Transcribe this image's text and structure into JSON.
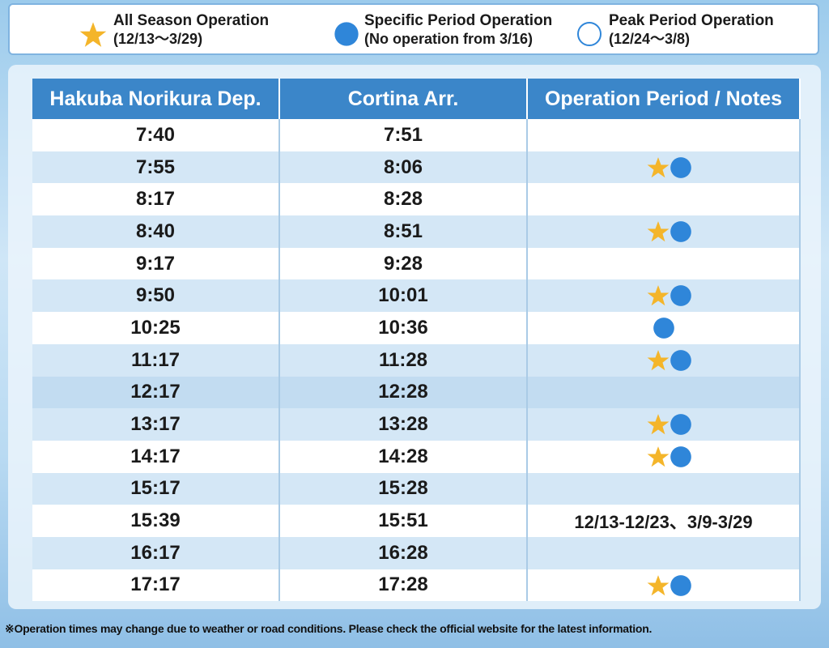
{
  "legend": [
    {
      "title": "All Season Operation",
      "period": "(12/13〜3/29)"
    },
    {
      "title": "Specific Period Operation",
      "period": "(No operation from 3/16)"
    },
    {
      "title": "Peak Period Operation",
      "period": "(12/24〜3/8)"
    }
  ],
  "table": {
    "headers": [
      "Hakuba Norikura Dep.",
      "Cortina Arr.",
      "Operation Period / Notes"
    ],
    "rows": [
      [
        "7:40",
        "7:51"
      ],
      [
        "7:55",
        "8:06"
      ],
      [
        "8:17",
        "8:28"
      ],
      [
        "8:40",
        "8:51"
      ],
      [
        "9:17",
        "9:28"
      ],
      [
        "9:50",
        "10:01"
      ],
      [
        "10:25",
        "10:36"
      ],
      [
        "11:17",
        "11:28"
      ],
      [
        "12:17",
        "12:28"
      ],
      [
        "13:17",
        "13:28"
      ],
      [
        "14:17",
        "14:28"
      ],
      [
        "15:17",
        "15:28"
      ],
      [
        "15:39",
        "15:51",
        "12/13-12/23、3/9-3/29"
      ],
      [
        "16:17",
        "16:28"
      ],
      [
        "17:17",
        "17:28"
      ]
    ]
  },
  "footer": "※Operation times may change due to weather or road conditions. Please check the official website for the latest information."
}
